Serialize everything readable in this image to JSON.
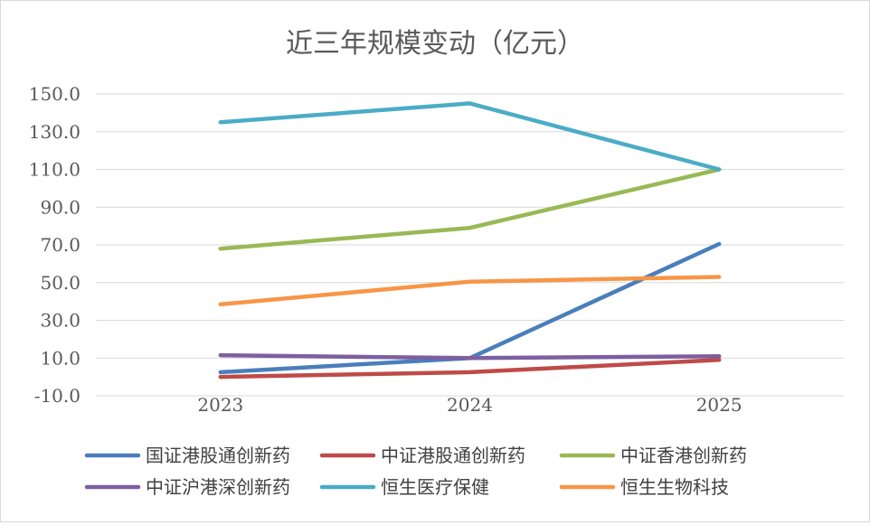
{
  "chart_data": {
    "type": "line",
    "title": "近三年规模变动（亿元）",
    "xlabel": "",
    "ylabel": "",
    "categories": [
      "2023",
      "2024",
      "2025"
    ],
    "ylim": [
      -10,
      150
    ],
    "yticks": [
      -10,
      10,
      30,
      50,
      70,
      90,
      110,
      130,
      150
    ],
    "ytick_labels": [
      "-10.0",
      "10.0",
      "30.0",
      "50.0",
      "70.0",
      "90.0",
      "110.0",
      "130.0",
      "150.0"
    ],
    "grid": true,
    "legend_position": "bottom",
    "series": [
      {
        "name": "国证港股通创新药",
        "color": "#4a7ebb",
        "values": [
          2.5,
          10,
          70.5
        ]
      },
      {
        "name": "中证港股通创新药",
        "color": "#be4b48",
        "values": [
          0,
          2.5,
          9
        ]
      },
      {
        "name": "中证香港创新药",
        "color": "#98b954",
        "values": [
          68,
          79,
          110
        ]
      },
      {
        "name": "中证沪港深创新药",
        "color": "#7d5fa0",
        "values": [
          11.5,
          10,
          11
        ]
      },
      {
        "name": "恒生医疗保健",
        "color": "#4bacc6",
        "values": [
          135,
          145,
          110
        ]
      },
      {
        "name": "恒生生物科技",
        "color": "#f79646",
        "values": [
          38.5,
          50.5,
          53
        ]
      }
    ]
  }
}
